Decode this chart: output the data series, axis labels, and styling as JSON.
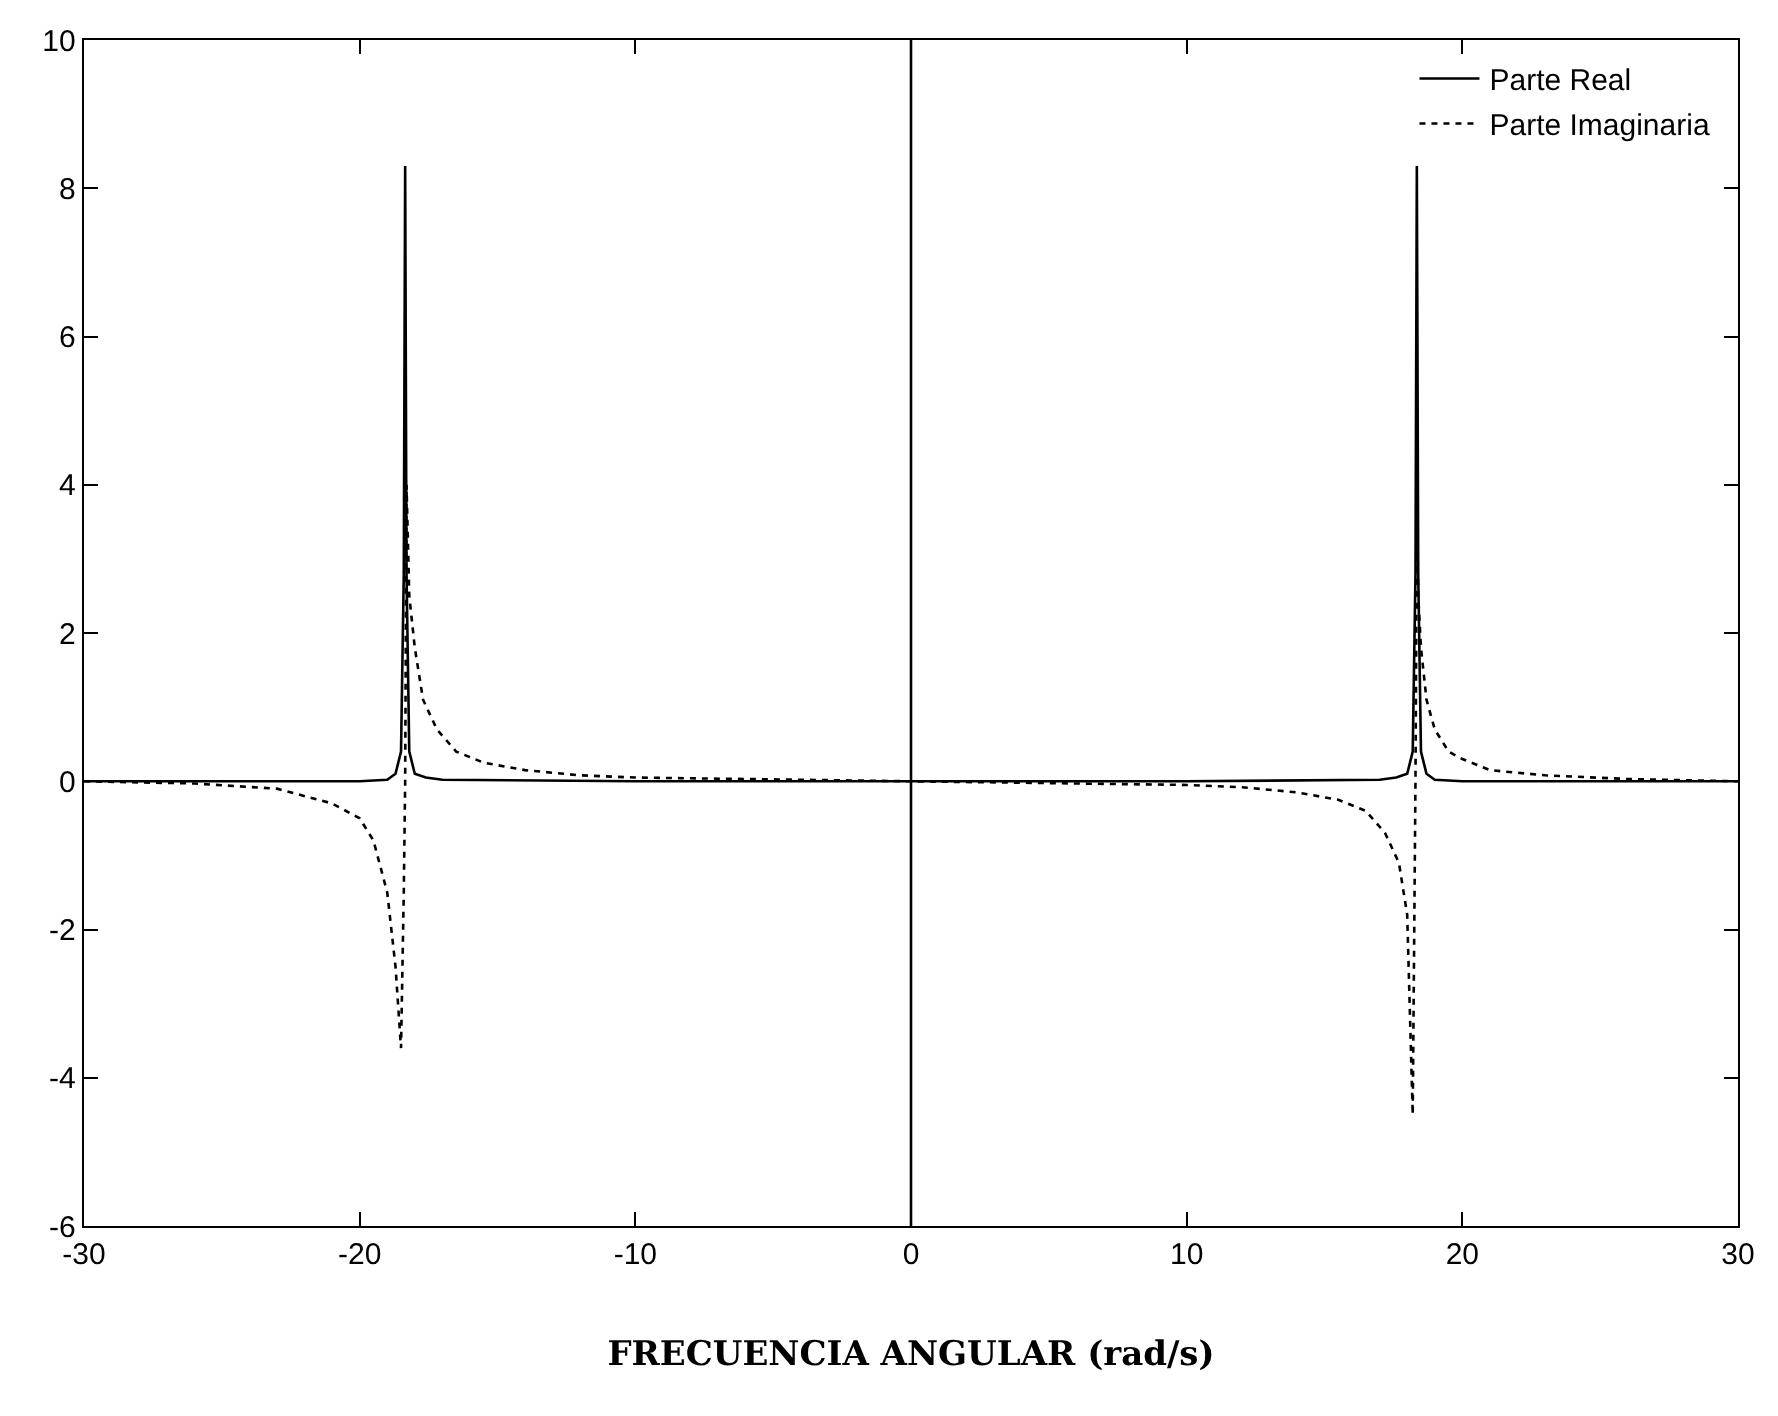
{
  "chart_data": {
    "type": "line",
    "xlabel": "FRECUENCIA ANGULAR (rad/s)",
    "xlim": [
      -30,
      30
    ],
    "xticks": [
      -30,
      -20,
      -10,
      0,
      10,
      20,
      30
    ],
    "ylim": [
      -6,
      10
    ],
    "yticks": [
      -6,
      -4,
      -2,
      0,
      2,
      4,
      6,
      8,
      10
    ],
    "legend": "top right",
    "marker": "none",
    "ref_lines": [
      {
        "axis": "x",
        "value": 0,
        "label": null,
        "color": "#000000"
      }
    ],
    "series": [
      {
        "name": "Parte Real",
        "color": "#000000",
        "line_style": "solid",
        "x": [
          -30,
          -20,
          -19,
          -18.7,
          -18.5,
          -18.4,
          -18.35,
          -18.3,
          -18.2,
          -18.0,
          -17.6,
          -17,
          -10,
          0,
          10,
          17,
          17.6,
          18.0,
          18.2,
          18.3,
          18.35,
          18.4,
          18.5,
          18.7,
          19,
          20,
          30
        ],
        "values": [
          0,
          0,
          0.02,
          0.1,
          0.4,
          2.8,
          8.3,
          2.8,
          0.4,
          0.1,
          0.05,
          0.02,
          0,
          0,
          0,
          0.02,
          0.05,
          0.1,
          0.4,
          2.8,
          8.3,
          2.8,
          0.4,
          0.1,
          0.02,
          0,
          0
        ]
      },
      {
        "name": "Parte Imaginaria",
        "color": "#000000",
        "line_style": "dotted",
        "x": [
          -30,
          -26,
          -23,
          -21,
          -20,
          -19.5,
          -19,
          -18.7,
          -18.5,
          -18.4,
          -18.35,
          -18.3,
          -18.2,
          -18.0,
          -17.7,
          -17.2,
          -16.5,
          -15.5,
          -14,
          -12,
          -10,
          0,
          10,
          12,
          14,
          15.5,
          16.5,
          17.2,
          17.7,
          18.0,
          18.2,
          18.3,
          18.35,
          18.4,
          18.5,
          18.7,
          19,
          19.5,
          20,
          21,
          23,
          26,
          30
        ],
        "values": [
          0,
          -0.03,
          -0.1,
          -0.3,
          -0.5,
          -0.8,
          -1.5,
          -2.5,
          -3.6,
          -1.5,
          0,
          4,
          2.5,
          1.8,
          1.1,
          0.7,
          0.4,
          0.25,
          0.15,
          0.08,
          0.05,
          0,
          -0.05,
          -0.08,
          -0.15,
          -0.25,
          -0.4,
          -0.7,
          -1.1,
          -1.8,
          -4.5,
          0,
          3.5,
          2.5,
          1.8,
          1.1,
          0.7,
          0.4,
          0.3,
          0.15,
          0.08,
          0.03,
          0
        ]
      }
    ]
  }
}
